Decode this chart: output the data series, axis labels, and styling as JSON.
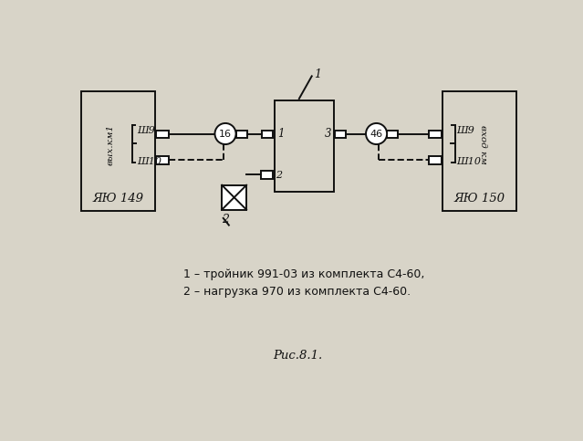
{
  "bg_color": "#d8d4c8",
  "line_color": "#111111",
  "legend_line1": "1 – тройник 991-03 из комплекта С4-60,",
  "legend_line2": "2 – нагрузка 970 из комплекта С4-60.",
  "caption": "Рис.8.1.",
  "left_box_label": "ЯЮ 149",
  "right_box_label": "ЯЮ 150",
  "left_port1_label": "Ш9",
  "left_port2_label": "Ш10",
  "right_port1_label": "Ш9",
  "right_port2_label": "Ш10",
  "left_rot_label": "вых.км1",
  "right_rot_label": "вход км",
  "circle1_label": "16",
  "circle2_label": "46",
  "port1_label": "1",
  "port3_label": "3",
  "arrow_label": "1",
  "port2_label": "2",
  "load_label": "2"
}
